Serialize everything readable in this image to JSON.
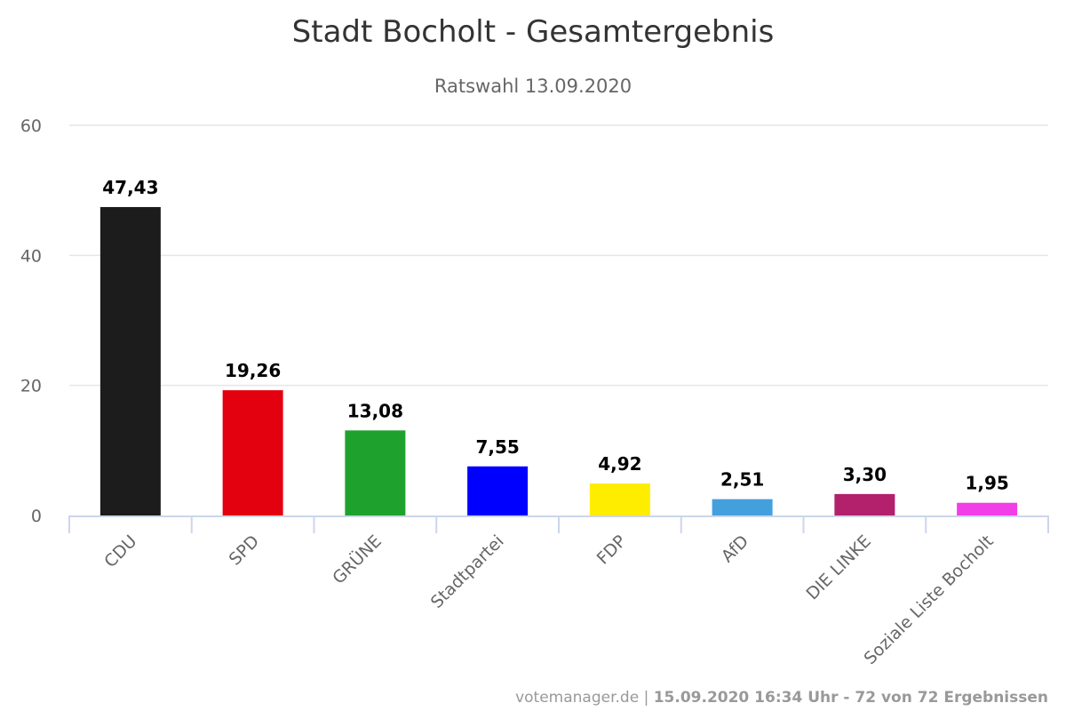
{
  "chart_data": {
    "type": "bar",
    "title": "Stadt Bocholt - Gesamtergebnis",
    "subtitle": "Ratswahl 13.09.2020",
    "categories": [
      "CDU",
      "SPD",
      "GRÜNE",
      "Stadtpartei",
      "FDP",
      "AfD",
      "DIE LINKE",
      "Soziale Liste Bocholt"
    ],
    "values": [
      47.43,
      19.26,
      13.08,
      7.55,
      4.92,
      2.51,
      3.3,
      1.95
    ],
    "value_labels": [
      "47,43",
      "19,26",
      "13,08",
      "7,55",
      "4,92",
      "2,51",
      "3,30",
      "1,95"
    ],
    "colors": [
      "#1c1c1c",
      "#e3000f",
      "#1fa12e",
      "#0000ff",
      "#ffed00",
      "#44a0dc",
      "#b3206c",
      "#f23ee6"
    ],
    "ylim": [
      0,
      60
    ],
    "yticks": [
      0,
      20,
      40,
      60
    ],
    "ytick_labels": [
      "0",
      "20",
      "40",
      "60"
    ],
    "xlabel": "",
    "ylabel": "",
    "grid": true,
    "legend": "none"
  },
  "footer": {
    "source": "votemanager.de | ",
    "status": "15.09.2020 16:34 Uhr - 72 von 72 Ergebnissen"
  }
}
